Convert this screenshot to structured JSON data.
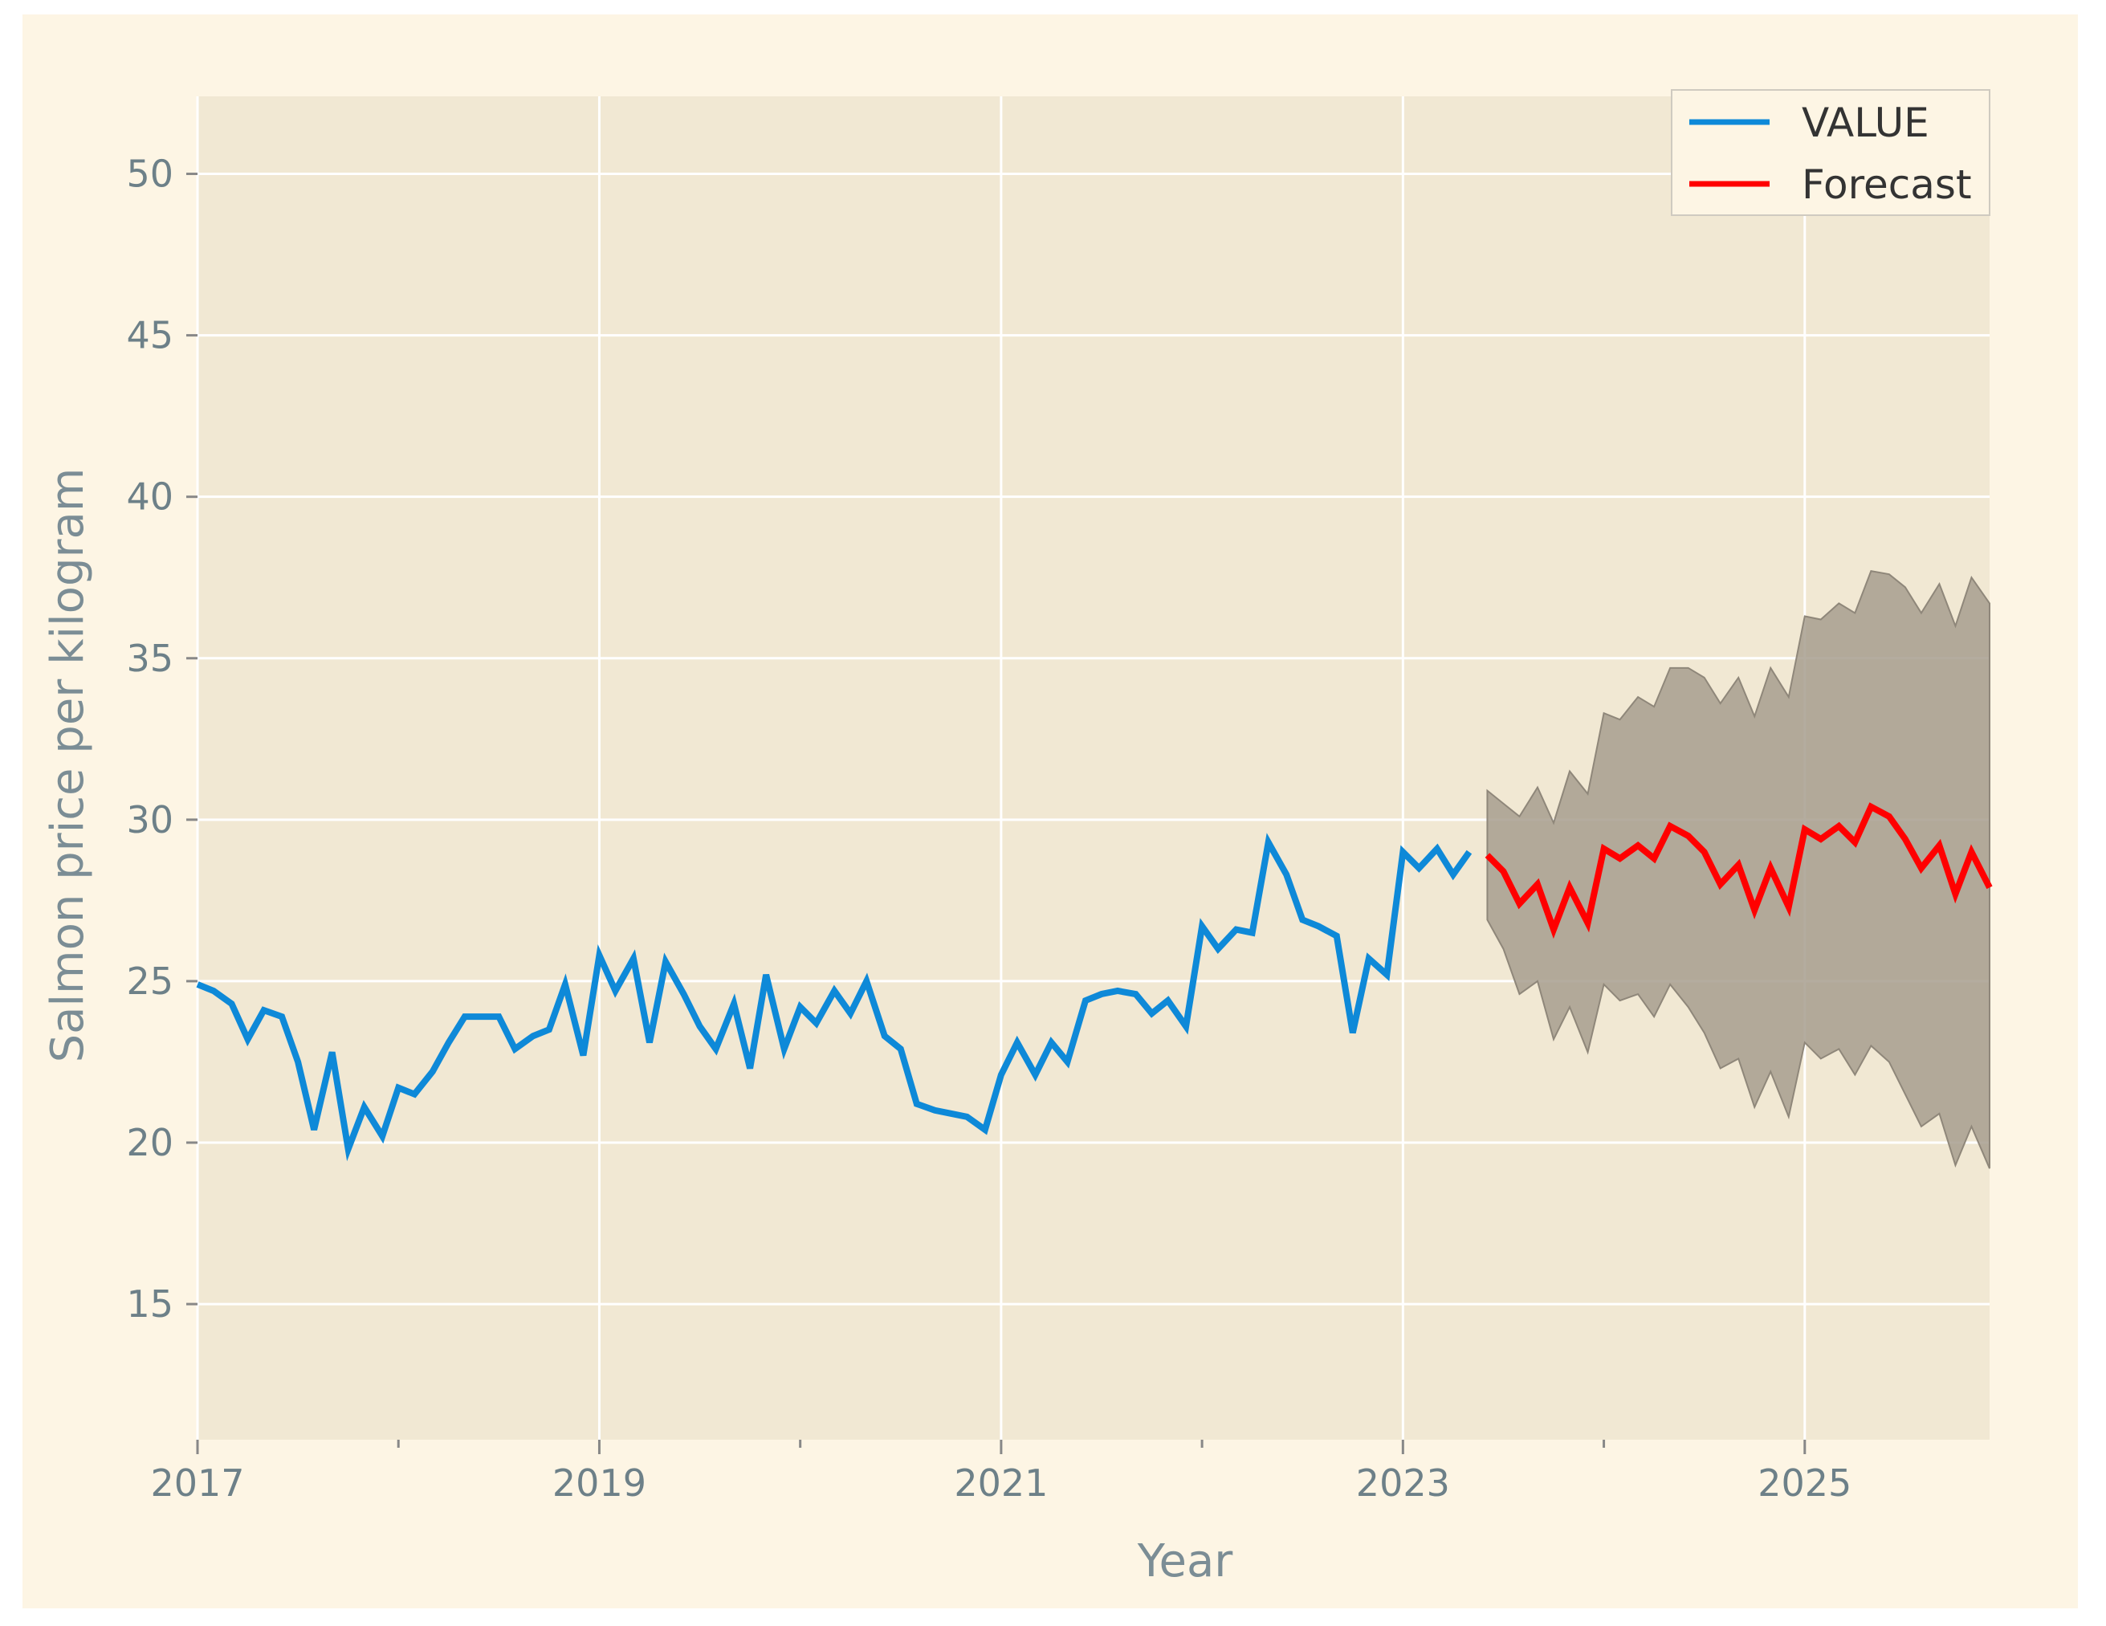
{
  "chart_data": {
    "type": "line",
    "title": "",
    "xlabel": "Year",
    "ylabel": "Salmon price per kilogram",
    "xlim": [
      2017,
      2025.92
    ],
    "ylim": [
      10.8,
      52.4
    ],
    "grid": true,
    "legend_position": "top-right",
    "x_ticks": [
      {
        "value": 2017,
        "label": "2017"
      },
      {
        "value": 2019,
        "label": "2019"
      },
      {
        "value": 2021,
        "label": "2021"
      },
      {
        "value": 2023,
        "label": "2023"
      },
      {
        "value": 2025,
        "label": "2025"
      }
    ],
    "x_minor_ticks": [
      2018,
      2020,
      2022,
      2024
    ],
    "y_ticks": [
      15,
      20,
      25,
      30,
      35,
      40,
      45,
      50
    ],
    "series": [
      {
        "name": "VALUE",
        "color": "#0e89d8",
        "points": [
          [
            2017.0,
            24.9
          ],
          [
            2017.08,
            24.7
          ],
          [
            2017.17,
            24.3
          ],
          [
            2017.25,
            23.2
          ],
          [
            2017.33,
            24.1
          ],
          [
            2017.42,
            23.9
          ],
          [
            2017.5,
            22.5
          ],
          [
            2017.58,
            20.4
          ],
          [
            2017.67,
            22.8
          ],
          [
            2017.75,
            19.8
          ],
          [
            2017.83,
            21.1
          ],
          [
            2017.92,
            20.2
          ],
          [
            2018.0,
            21.7
          ],
          [
            2018.08,
            21.5
          ],
          [
            2018.17,
            22.2
          ],
          [
            2018.25,
            23.1
          ],
          [
            2018.33,
            23.9
          ],
          [
            2018.42,
            23.9
          ],
          [
            2018.5,
            23.9
          ],
          [
            2018.58,
            22.9
          ],
          [
            2018.67,
            23.3
          ],
          [
            2018.75,
            23.5
          ],
          [
            2018.83,
            24.9
          ],
          [
            2018.92,
            22.7
          ],
          [
            2019.0,
            25.8
          ],
          [
            2019.08,
            24.7
          ],
          [
            2019.17,
            25.7
          ],
          [
            2019.25,
            23.1
          ],
          [
            2019.33,
            25.6
          ],
          [
            2019.42,
            24.6
          ],
          [
            2019.5,
            23.6
          ],
          [
            2019.58,
            22.9
          ],
          [
            2019.67,
            24.3
          ],
          [
            2019.75,
            22.3
          ],
          [
            2019.83,
            25.2
          ],
          [
            2019.92,
            22.9
          ],
          [
            2020.0,
            24.2
          ],
          [
            2020.08,
            23.7
          ],
          [
            2020.17,
            24.7
          ],
          [
            2020.25,
            24.0
          ],
          [
            2020.33,
            25.0
          ],
          [
            2020.42,
            23.3
          ],
          [
            2020.5,
            22.9
          ],
          [
            2020.58,
            21.2
          ],
          [
            2020.67,
            21.0
          ],
          [
            2020.75,
            20.9
          ],
          [
            2020.83,
            20.8
          ],
          [
            2020.92,
            20.4
          ],
          [
            2021.0,
            22.1
          ],
          [
            2021.08,
            23.1
          ],
          [
            2021.17,
            22.1
          ],
          [
            2021.25,
            23.1
          ],
          [
            2021.33,
            22.5
          ],
          [
            2021.42,
            24.4
          ],
          [
            2021.5,
            24.6
          ],
          [
            2021.58,
            24.7
          ],
          [
            2021.67,
            24.6
          ],
          [
            2021.75,
            24.0
          ],
          [
            2021.83,
            24.4
          ],
          [
            2021.92,
            23.6
          ],
          [
            2022.0,
            26.7
          ],
          [
            2022.08,
            26.0
          ],
          [
            2022.17,
            26.6
          ],
          [
            2022.25,
            26.5
          ],
          [
            2022.33,
            29.3
          ],
          [
            2022.42,
            28.3
          ],
          [
            2022.5,
            26.9
          ],
          [
            2022.58,
            26.7
          ],
          [
            2022.67,
            26.4
          ],
          [
            2022.75,
            23.4
          ],
          [
            2022.83,
            25.7
          ],
          [
            2022.92,
            25.2
          ],
          [
            2023.0,
            29.0
          ],
          [
            2023.08,
            28.5
          ],
          [
            2023.17,
            29.1
          ],
          [
            2023.25,
            28.3
          ],
          [
            2023.33,
            29.0
          ]
        ]
      },
      {
        "name": "Forecast",
        "color": "#ff0000",
        "points": [
          [
            2023.42,
            28.9
          ],
          [
            2023.5,
            28.4
          ],
          [
            2023.58,
            27.4
          ],
          [
            2023.67,
            28.0
          ],
          [
            2023.75,
            26.6
          ],
          [
            2023.83,
            27.9
          ],
          [
            2023.92,
            26.8
          ],
          [
            2024.0,
            29.1
          ],
          [
            2024.08,
            28.8
          ],
          [
            2024.17,
            29.2
          ],
          [
            2024.25,
            28.8
          ],
          [
            2024.33,
            29.8
          ],
          [
            2024.42,
            29.5
          ],
          [
            2024.5,
            29.0
          ],
          [
            2024.58,
            28.0
          ],
          [
            2024.67,
            28.6
          ],
          [
            2024.75,
            27.2
          ],
          [
            2024.83,
            28.5
          ],
          [
            2024.92,
            27.3
          ],
          [
            2025.0,
            29.7
          ],
          [
            2025.08,
            29.4
          ],
          [
            2025.17,
            29.8
          ],
          [
            2025.25,
            29.3
          ],
          [
            2025.33,
            30.4
          ],
          [
            2025.42,
            30.1
          ],
          [
            2025.5,
            29.4
          ],
          [
            2025.58,
            28.5
          ],
          [
            2025.67,
            29.2
          ],
          [
            2025.75,
            27.7
          ],
          [
            2025.83,
            29.0
          ],
          [
            2025.92,
            27.9
          ]
        ]
      }
    ],
    "confidence_band": {
      "color": "#a79e8e",
      "upper": [
        [
          2023.42,
          30.9
        ],
        [
          2023.5,
          30.5
        ],
        [
          2023.58,
          30.1
        ],
        [
          2023.67,
          31.0
        ],
        [
          2023.75,
          29.9
        ],
        [
          2023.83,
          31.5
        ],
        [
          2023.92,
          30.8
        ],
        [
          2024.0,
          33.3
        ],
        [
          2024.08,
          33.1
        ],
        [
          2024.17,
          33.8
        ],
        [
          2024.25,
          33.5
        ],
        [
          2024.33,
          34.7
        ],
        [
          2024.42,
          34.7
        ],
        [
          2024.5,
          34.4
        ],
        [
          2024.58,
          33.6
        ],
        [
          2024.67,
          34.4
        ],
        [
          2024.75,
          33.2
        ],
        [
          2024.83,
          34.7
        ],
        [
          2024.92,
          33.8
        ],
        [
          2025.0,
          36.3
        ],
        [
          2025.08,
          36.2
        ],
        [
          2025.17,
          36.7
        ],
        [
          2025.25,
          36.4
        ],
        [
          2025.33,
          37.7
        ],
        [
          2025.42,
          37.6
        ],
        [
          2025.5,
          37.2
        ],
        [
          2025.58,
          36.4
        ],
        [
          2025.67,
          37.3
        ],
        [
          2025.75,
          36.0
        ],
        [
          2025.83,
          37.5
        ],
        [
          2025.92,
          36.7
        ]
      ],
      "lower": [
        [
          2023.42,
          26.9
        ],
        [
          2023.5,
          26.0
        ],
        [
          2023.58,
          24.6
        ],
        [
          2023.67,
          25.0
        ],
        [
          2023.75,
          23.2
        ],
        [
          2023.83,
          24.2
        ],
        [
          2023.92,
          22.8
        ],
        [
          2024.0,
          24.9
        ],
        [
          2024.08,
          24.4
        ],
        [
          2024.17,
          24.6
        ],
        [
          2024.25,
          23.9
        ],
        [
          2024.33,
          24.9
        ],
        [
          2024.42,
          24.2
        ],
        [
          2024.5,
          23.4
        ],
        [
          2024.58,
          22.3
        ],
        [
          2024.67,
          22.6
        ],
        [
          2024.75,
          21.1
        ],
        [
          2024.83,
          22.2
        ],
        [
          2024.92,
          20.8
        ],
        [
          2025.0,
          23.1
        ],
        [
          2025.08,
          22.6
        ],
        [
          2025.17,
          22.9
        ],
        [
          2025.25,
          22.1
        ],
        [
          2025.33,
          23.0
        ],
        [
          2025.42,
          22.5
        ],
        [
          2025.5,
          21.5
        ],
        [
          2025.58,
          20.5
        ],
        [
          2025.67,
          20.9
        ],
        [
          2025.75,
          19.3
        ],
        [
          2025.83,
          20.5
        ],
        [
          2025.92,
          19.2
        ]
      ]
    },
    "legend": [
      {
        "label": "VALUE",
        "color": "#0e89d8"
      },
      {
        "label": "Forecast",
        "color": "#ff0000"
      }
    ]
  }
}
